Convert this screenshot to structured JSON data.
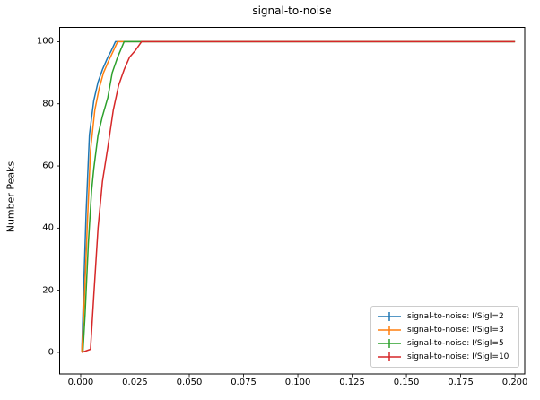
{
  "chart_data": {
    "type": "line",
    "title": "signal-to-noise",
    "xlabel": "",
    "ylabel": "Number Peaks",
    "xlim": [
      -0.0097,
      0.2045
    ],
    "ylim": [
      -6.94,
      104.6
    ],
    "x_tick_labels": [
      "0.000",
      "0.025",
      "0.050",
      "0.075",
      "0.100",
      "0.125",
      "0.150",
      "0.175",
      "0.200"
    ],
    "x_tick_values": [
      0.0,
      0.025,
      0.05,
      0.075,
      0.1,
      0.125,
      0.15,
      0.175,
      0.2
    ],
    "y_tick_labels": [
      "0",
      "20",
      "40",
      "60",
      "80",
      "100"
    ],
    "y_tick_values": [
      0,
      20,
      40,
      60,
      80,
      100
    ],
    "grid": false,
    "legend_position": "lower right",
    "legend_marker": "errorbar-marker",
    "axis_color": "#000000",
    "background_color": "#ffffff",
    "series": [
      {
        "name": "signal-to-noise: I/SigI=2",
        "color": "#1f77b4",
        "x": [
          0.0005,
          0.00125,
          0.0025,
          0.004,
          0.006,
          0.008,
          0.01,
          0.0125,
          0.014,
          0.016,
          0.2
        ],
        "y": [
          0,
          18,
          45,
          70,
          81,
          87,
          91,
          95,
          97,
          100,
          100
        ]
      },
      {
        "name": "signal-to-noise: I/SigI=3",
        "color": "#ff7f0e",
        "x": [
          0.0005,
          0.0015,
          0.003,
          0.0045,
          0.0065,
          0.0085,
          0.0105,
          0.013,
          0.015,
          0.017,
          0.2
        ],
        "y": [
          0,
          14,
          40,
          65,
          78,
          85,
          90,
          94,
          97,
          100,
          100
        ]
      },
      {
        "name": "signal-to-noise: I/SigI=5",
        "color": "#2ca02c",
        "x": [
          0.001,
          0.002,
          0.0035,
          0.005,
          0.006,
          0.008,
          0.01,
          0.0125,
          0.0145,
          0.017,
          0.02,
          0.2
        ],
        "y": [
          0,
          12,
          35,
          52,
          59,
          70,
          76,
          82,
          90,
          95,
          100,
          100
        ]
      },
      {
        "name": "signal-to-noise: I/SigI=10",
        "color": "#d62728",
        "x": [
          0.0005,
          0.0045,
          0.006,
          0.008,
          0.01,
          0.0125,
          0.015,
          0.0175,
          0.02,
          0.0225,
          0.025,
          0.028,
          0.2
        ],
        "y": [
          0,
          1,
          18,
          40,
          55,
          66,
          78,
          86,
          91,
          95,
          97,
          100,
          100
        ]
      }
    ]
  }
}
